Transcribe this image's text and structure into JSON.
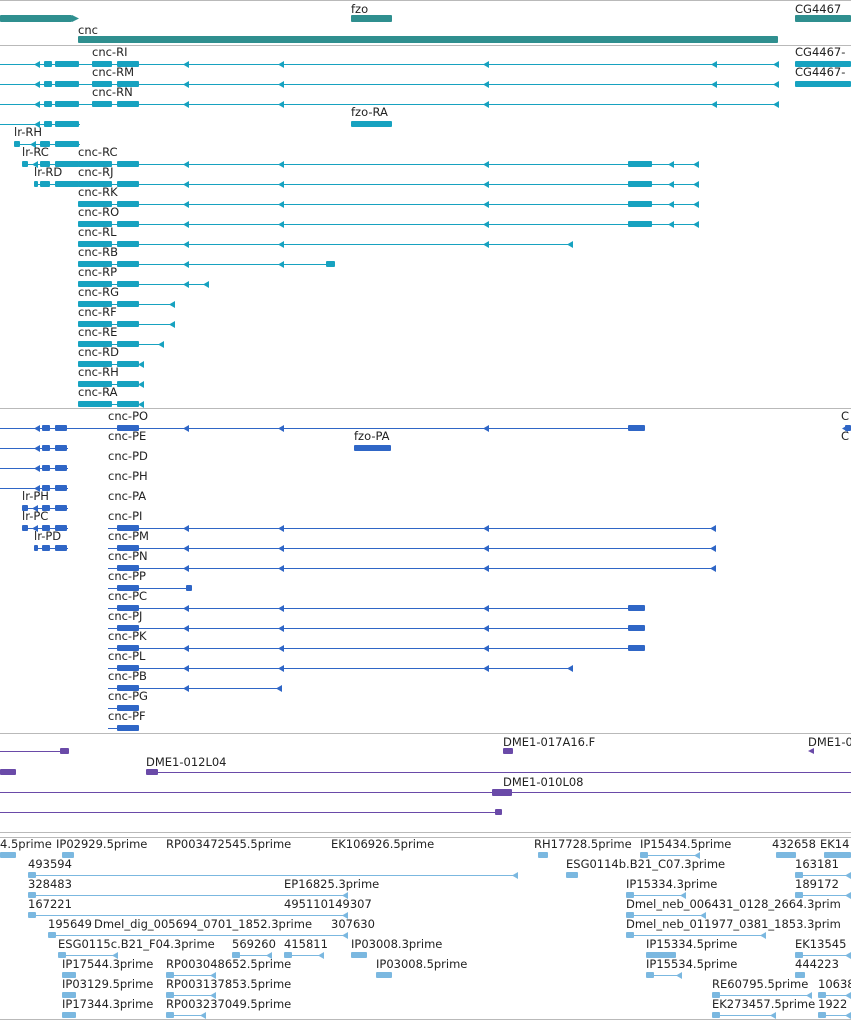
{
  "colors": {
    "gene": "#2f8f8f",
    "transcript_flybase": "#17a2c0",
    "transcript_refseq": "#2f66c6",
    "clone": "#6a4aa8",
    "est": "#7bb8e0",
    "separator": "#b9b9b9"
  },
  "tracks": {
    "genes": {
      "items": [
        {
          "label": "fzo"
        },
        {
          "label": "CG4467"
        },
        {
          "label": "cnc"
        }
      ]
    },
    "flybase_transcripts": {
      "labels": [
        "cnc-RI",
        "cnc-RM",
        "cnc-RN",
        "fzo-RA",
        "lr-RH",
        "lr-RC",
        "cnc-RC",
        "lr-RD",
        "cnc-RJ",
        "cnc-RK",
        "cnc-RO",
        "cnc-RL",
        "cnc-RB",
        "cnc-RP",
        "cnc-RG",
        "cnc-RF",
        "cnc-RE",
        "cnc-RD",
        "cnc-RH",
        "cnc-RA",
        "CG4467-",
        "CG4467-"
      ]
    },
    "refseq_transcripts": {
      "labels": [
        "cnc-PO",
        "cnc-PE",
        "fzo-PA",
        "cnc-PD",
        "cnc-PH",
        "lr-PH",
        "cnc-PA",
        "lr-PC",
        "cnc-PI",
        "lr-PD",
        "cnc-PM",
        "cnc-PN",
        "cnc-PP",
        "cnc-PC",
        "cnc-PJ",
        "cnc-PK",
        "cnc-PL",
        "cnc-PB",
        "cnc-PG",
        "cnc-PF",
        "C",
        "C"
      ]
    },
    "clones": {
      "labels": [
        "DME1-017A16.F",
        "DME1-0",
        "DME1-012L04",
        "DME1-010L08"
      ]
    },
    "ests": {
      "labels": [
        "4.5prime",
        "IP02929.5prime",
        "RP003472545.5prime",
        "EK106926.5prime",
        "RH17728.5prime",
        "IP15434.5prime",
        "432658",
        "EK14",
        "493594",
        "ESG0114b.B21_C07.3prime",
        "163181",
        "328483",
        "EP16825.3prime",
        "IP15334.3prime",
        "189172",
        "167221",
        "495110149307",
        "Dmel_neb_006431_0128_2664.3prim",
        "195649",
        "Dmel_dig_005694_0701_1852.3prime",
        "307630",
        "Dmel_neb_011977_0381_1853.3prim",
        "ESG0115c.B21_F04.3prime",
        "569260",
        "415811",
        "IP03008.3prime",
        "IP15334.5prime",
        "EK13545",
        "IP17544.3prime",
        "RP003048652.5prime",
        "IP03008.5prime",
        "IP15534.5prime",
        "444223",
        "IP03129.5prime",
        "RP003137853.5prime",
        "RE60795.5prime",
        "10638",
        "IP17344.3prime",
        "RP003237049.5prime",
        "EK273457.5prime",
        "1922"
      ]
    }
  }
}
